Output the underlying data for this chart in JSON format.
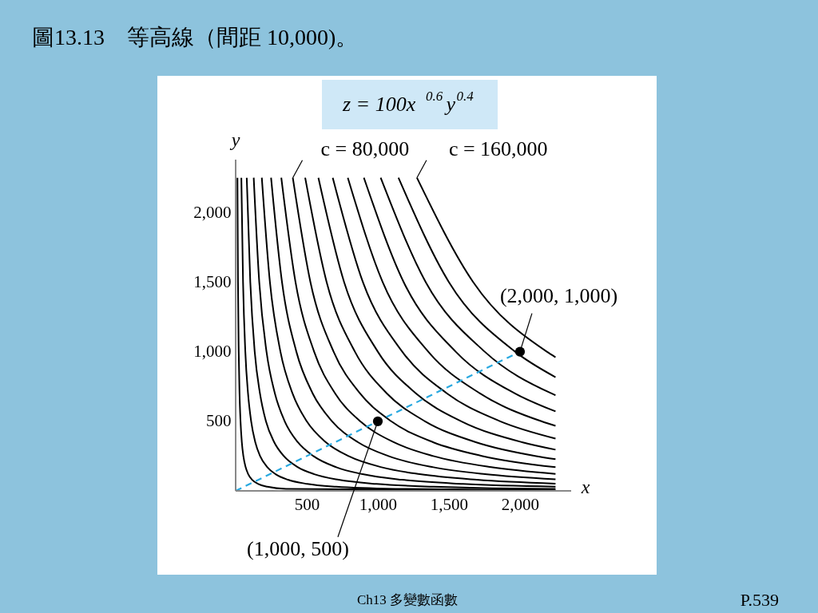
{
  "chart_data": {
    "type": "line",
    "title": "圖13.13　等高線（間距 10,000)。",
    "subtitle": "z = 100x$^{0.6}$y$^{0.4}$",
    "xlabel": "x",
    "ylabel": "y",
    "xlim": [
      0,
      2360
    ],
    "ylim": [
      0,
      2380
    ],
    "xticks": [
      500,
      {
        "value": 1000,
        "label": "1,000"
      },
      {
        "value": 1500,
        "label": "1,500"
      },
      {
        "value": 2000,
        "label": "2,000"
      }
    ],
    "yticks": [
      500,
      {
        "value": 1000,
        "label": "1,000"
      },
      {
        "value": 1500,
        "label": "1,500"
      },
      {
        "value": 2000,
        "label": "2,000"
      }
    ],
    "grid": false,
    "series": [
      {
        "color": "#000000",
        "x": [
          12.5,
          16.4,
          21.5,
          27.3,
          34.2,
          43.4,
          54.3,
          70.2,
          88.5,
          116,
          159,
          223,
          354,
          2250
        ],
        "values": [
          2250,
          1500,
          1000,
          700,
          500,
          350,
          250,
          170,
          120,
          80,
          50,
          30,
          15,
          1
        ]
      },
      {
        "color": "#000000",
        "x": [
          40,
          52,
          68,
          87,
          109,
          138,
          172,
          223,
          281,
          368,
          504,
          708,
          1125,
          2250
        ],
        "values": [
          2250,
          1500,
          1000,
          700,
          500,
          350,
          250,
          170,
          120,
          80,
          50,
          30,
          15,
          5
        ]
      },
      {
        "color": "#000000",
        "x": [
          78,
          103,
          134,
          171,
          213,
          271,
          339,
          438,
          553,
          724,
          991,
          1392,
          2211,
          2250
        ],
        "values": [
          2250,
          1500,
          1000,
          700,
          500,
          350,
          250,
          170,
          120,
          80,
          50,
          30,
          15,
          15
        ]
      },
      {
        "color": "#000000",
        "x": [
          127,
          166,
          217,
          276,
          345,
          437,
          547,
          708,
          893,
          1169,
          1600,
          2250
        ],
        "values": [
          2250,
          1500,
          1000,
          700,
          500,
          350,
          250,
          170,
          120,
          80,
          50,
          30
        ]
      },
      {
        "color": "#000000",
        "x": [
          184,
          241,
          315,
          400,
          500,
          634,
          794,
          1026,
          1295,
          1696,
          2250
        ],
        "values": [
          2250,
          1500,
          1000,
          700,
          500,
          350,
          250,
          170,
          120,
          80,
          52
        ]
      },
      {
        "color": "#000000",
        "x": [
          249,
          326,
          427,
          542,
          678,
          860,
          1075,
          1391,
          1754,
          2250
        ],
        "values": [
          2250,
          1500,
          1000,
          700,
          500,
          350,
          250,
          170,
          120,
          83
        ]
      },
      {
        "color": "#000000",
        "x": [
          321,
          421,
          552,
          700,
          876,
          1111,
          1390,
          1798,
          2250
        ],
        "values": [
          2250,
          1500,
          1000,
          700,
          500,
          350,
          250,
          170,
          122
        ]
      },
      {
        "color": "#000000",
        "x": [
          402,
          526,
          689,
          875,
          1094,
          1388,
          1737,
          2250
        ],
        "values": [
          2250,
          1500,
          1000,
          700,
          500,
          350,
          250,
          170
        ]
      },
      {
        "color": "#000000",
        "x": [
          489,
          640,
          839,
          1064,
          1332,
          1689,
          2114,
          2250
        ],
        "values": [
          2250,
          1500,
          1000,
          700,
          500,
          350,
          250,
          228
        ]
      },
      {
        "color": "#000000",
        "x": [
          582,
          763,
          1000,
          1269,
          1587,
          2014,
          2250
        ],
        "values": [
          2250,
          1500,
          1000,
          700,
          500,
          350,
          296
        ]
      },
      {
        "color": "#000000",
        "x": [
          683,
          895,
          1172,
          1487,
          1861,
          2250
        ],
        "values": [
          2250,
          1500,
          1000,
          700,
          500,
          376
        ]
      },
      {
        "color": "#000000",
        "x": [
          789,
          1034,
          1355,
          1719,
          2151,
          2250
        ],
        "values": [
          2250,
          1500,
          1000,
          700,
          500,
          467
        ]
      },
      {
        "color": "#000000",
        "x": [
          902,
          1182,
          1548,
          1964,
          2250
        ],
        "values": [
          2250,
          1500,
          1000,
          700,
          571
        ]
      },
      {
        "color": "#000000",
        "x": [
          1020,
          1337,
          1752,
          2222,
          2250
        ],
        "values": [
          2250,
          1500,
          1000,
          700,
          687
        ]
      },
      {
        "color": "#000000",
        "x": [
          1145,
          1500,
          1966,
          2250
        ],
        "values": [
          2250,
          1500,
          1000,
          817
        ]
      },
      {
        "color": "#000000",
        "x": [
          1275,
          1671,
          2189,
          2250
        ],
        "values": [
          2250,
          1500,
          1000,
          960
        ]
      },
      {
        "color": "#29a9e0",
        "line_style": "dashed",
        "x": [
          0,
          1000,
          2000
        ],
        "values": [
          0,
          500,
          1000
        ]
      },
      {
        "type": "scatter",
        "marker": "circle",
        "color": "#000000",
        "x": [
          1000,
          2000
        ],
        "values": [
          500,
          1000
        ]
      }
    ],
    "annotations": [
      {
        "text": "c = 80,000",
        "x": 402,
        "y": 2250
      },
      {
        "text": "c = 160,000",
        "x": 1275,
        "y": 2250
      },
      {
        "text": "(2,000, 1,000)",
        "x": 2000,
        "y": 1000
      },
      {
        "text": "(1,000, 500)",
        "x": 1000,
        "y": 500
      },
      "Ch13 多變數函數",
      "P.539"
    ]
  }
}
